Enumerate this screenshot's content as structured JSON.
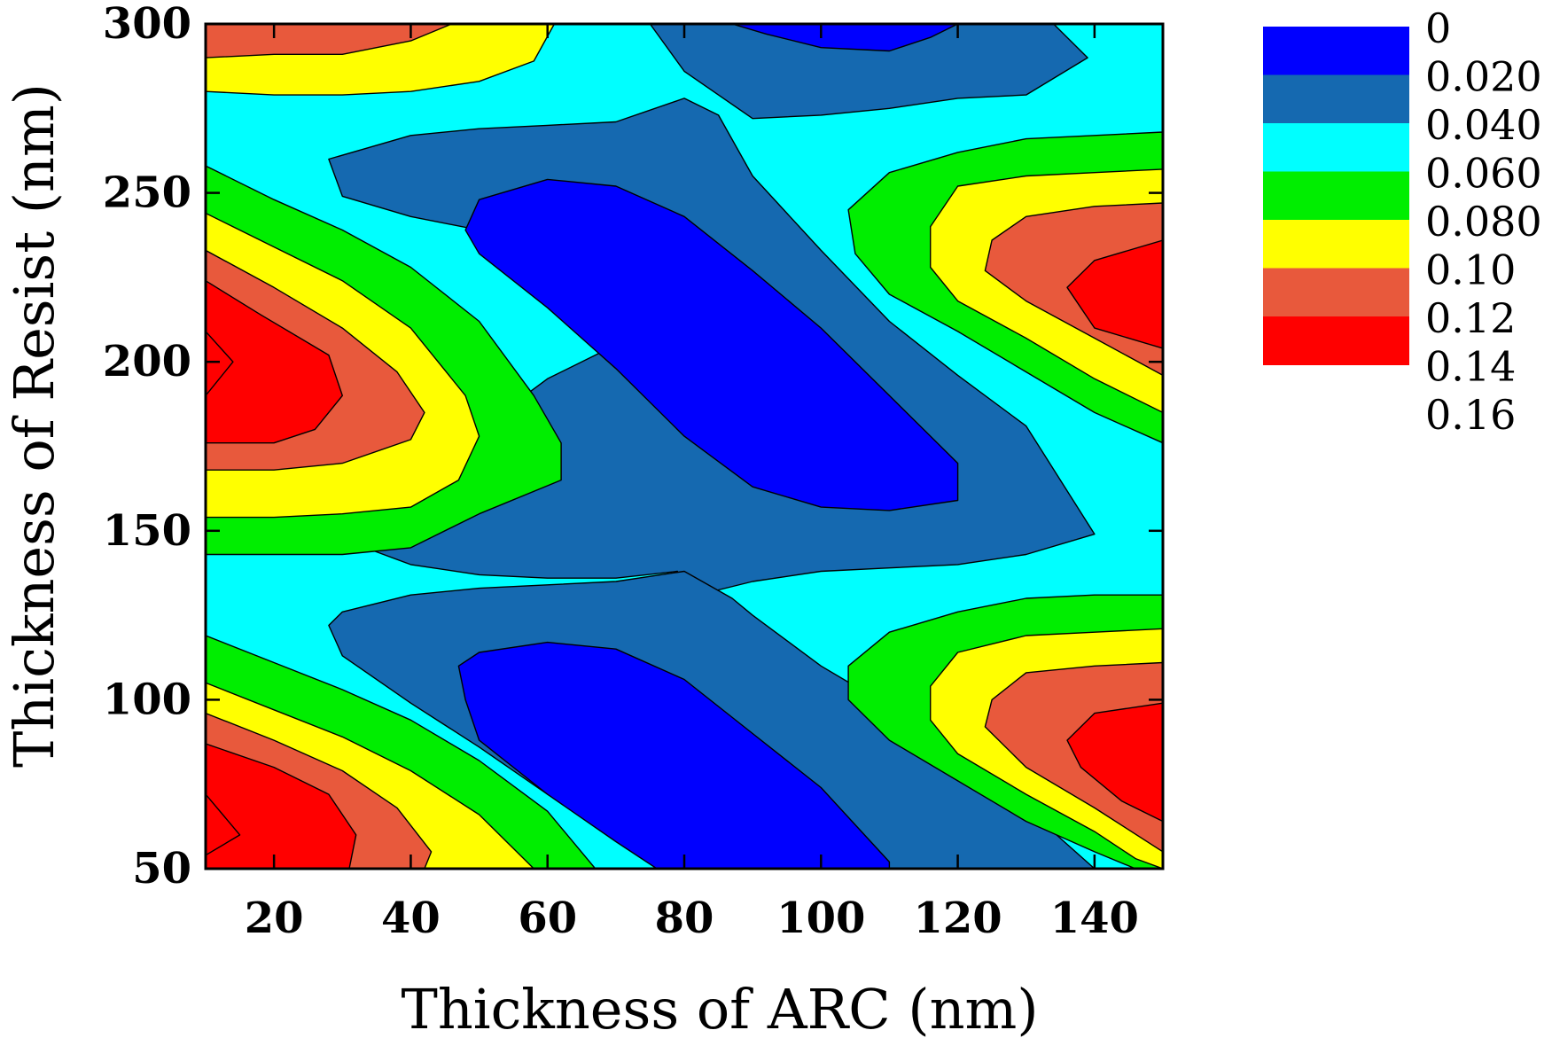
{
  "chart_data": {
    "type": "contour",
    "xlabel": "Thickness of ARC (nm)",
    "ylabel": "Thickness of Resist (nm)",
    "xlim": [
      10,
      150
    ],
    "ylim": [
      50,
      300
    ],
    "xticks": [
      20,
      40,
      60,
      80,
      100,
      120,
      140
    ],
    "yticks": [
      50,
      100,
      150,
      200,
      250,
      300
    ],
    "grid": false,
    "legend": {
      "placement": "right",
      "levels": [
        "0",
        "0.020",
        "0.040",
        "0.060",
        "0.080",
        "0.10",
        "0.12",
        "0.14",
        "0.16"
      ],
      "colors": [
        "#0000ff",
        "#1569b0",
        "#00ffff",
        "#00ee00",
        "#ffff00",
        "#e8593c",
        "#ff0000"
      ]
    },
    "contour_bands": [
      {
        "level": 0.06,
        "points": [
          [
            10,
            280
          ],
          [
            20,
            279
          ],
          [
            30,
            279
          ],
          [
            40,
            280
          ],
          [
            50,
            283
          ],
          [
            58,
            289
          ],
          [
            61,
            300
          ],
          [
            10,
            300
          ]
        ]
      },
      {
        "level": 0.08,
        "points": [
          [
            10,
            289
          ],
          [
            20,
            290
          ],
          [
            30,
            290
          ],
          [
            40,
            294
          ],
          [
            50,
            300
          ],
          [
            10,
            300
          ]
        ]
      },
      {
        "level": 0.02,
        "points": [
          [
            87,
            300
          ],
          [
            90,
            296
          ],
          [
            100,
            293
          ],
          [
            110,
            292
          ],
          [
            120,
            300
          ]
        ]
      },
      {
        "level": 0.04,
        "points": [
          [
            75,
            300
          ],
          [
            80,
            286
          ],
          [
            90,
            272
          ],
          [
            100,
            273
          ],
          [
            110,
            275
          ],
          [
            120,
            278
          ],
          [
            130,
            279
          ],
          [
            140,
            290
          ],
          [
            135,
            300
          ]
        ]
      },
      {
        "level": 0.04,
        "points": [
          [
            28,
            260
          ],
          [
            30,
            262
          ],
          [
            40,
            267
          ],
          [
            50,
            269
          ],
          [
            60,
            271
          ],
          [
            70,
            272
          ],
          [
            80,
            278
          ],
          [
            85,
            273
          ],
          [
            90,
            255
          ],
          [
            100,
            233
          ],
          [
            110,
            213
          ],
          [
            120,
            198
          ],
          [
            130,
            185
          ],
          [
            140,
            149
          ],
          [
            130,
            144
          ],
          [
            120,
            141
          ],
          [
            110,
            139
          ],
          [
            100,
            138
          ],
          [
            90,
            135
          ],
          [
            80,
            130
          ],
          [
            70,
            132
          ],
          [
            60,
            133
          ],
          [
            50,
            134
          ],
          [
            40,
            131
          ],
          [
            30,
            124
          ],
          [
            27,
            120
          ],
          [
            30,
            113
          ],
          [
            40,
            99
          ],
          [
            50,
            86
          ],
          [
            60,
            72
          ],
          [
            70,
            60
          ],
          [
            76,
            50
          ],
          [
            120,
            50
          ],
          [
            114,
            55
          ],
          [
            104,
            68
          ],
          [
            94,
            80
          ],
          [
            84,
            95
          ],
          [
            78,
            106
          ],
          [
            72,
            113
          ],
          [
            64,
            118
          ],
          [
            56,
            118
          ],
          [
            48,
            114
          ],
          [
            46,
            109
          ],
          [
            50,
            99
          ],
          [
            60,
            82
          ],
          [
            70,
            68
          ],
          [
            78,
            57
          ],
          [
            84,
            50
          ],
          [
            120,
            50
          ],
          [
            130,
            50
          ],
          [
            140,
            50
          ],
          [
            150,
            50
          ],
          [
            150,
            300
          ],
          [
            135,
            300
          ],
          [
            140,
            290
          ],
          [
            130,
            279
          ],
          [
            120,
            278
          ],
          [
            110,
            275
          ],
          [
            100,
            273
          ],
          [
            90,
            272
          ],
          [
            80,
            286
          ],
          [
            75,
            300
          ],
          [
            61,
            300
          ],
          [
            58,
            289
          ],
          [
            50,
            283
          ],
          [
            40,
            280
          ],
          [
            30,
            279
          ],
          [
            20,
            279
          ],
          [
            10,
            280
          ],
          [
            10,
            142
          ],
          [
            20,
            142
          ],
          [
            30,
            142
          ],
          [
            40,
            143
          ],
          [
            50,
            146
          ],
          [
            58,
            154
          ],
          [
            60,
            162
          ],
          [
            58,
            171
          ],
          [
            50,
            184
          ],
          [
            40,
            196
          ],
          [
            30,
            211
          ],
          [
            20,
            227
          ],
          [
            10,
            238
          ],
          [
            10,
            258
          ],
          [
            20,
            248
          ],
          [
            28,
            240
          ],
          [
            30,
            246
          ]
        ]
      },
      {
        "level": 0.02,
        "points": [
          [
            86,
            300
          ],
          [
            90,
            296
          ],
          [
            100,
            293
          ],
          [
            110,
            292
          ],
          [
            120,
            300
          ]
        ]
      }
    ]
  }
}
